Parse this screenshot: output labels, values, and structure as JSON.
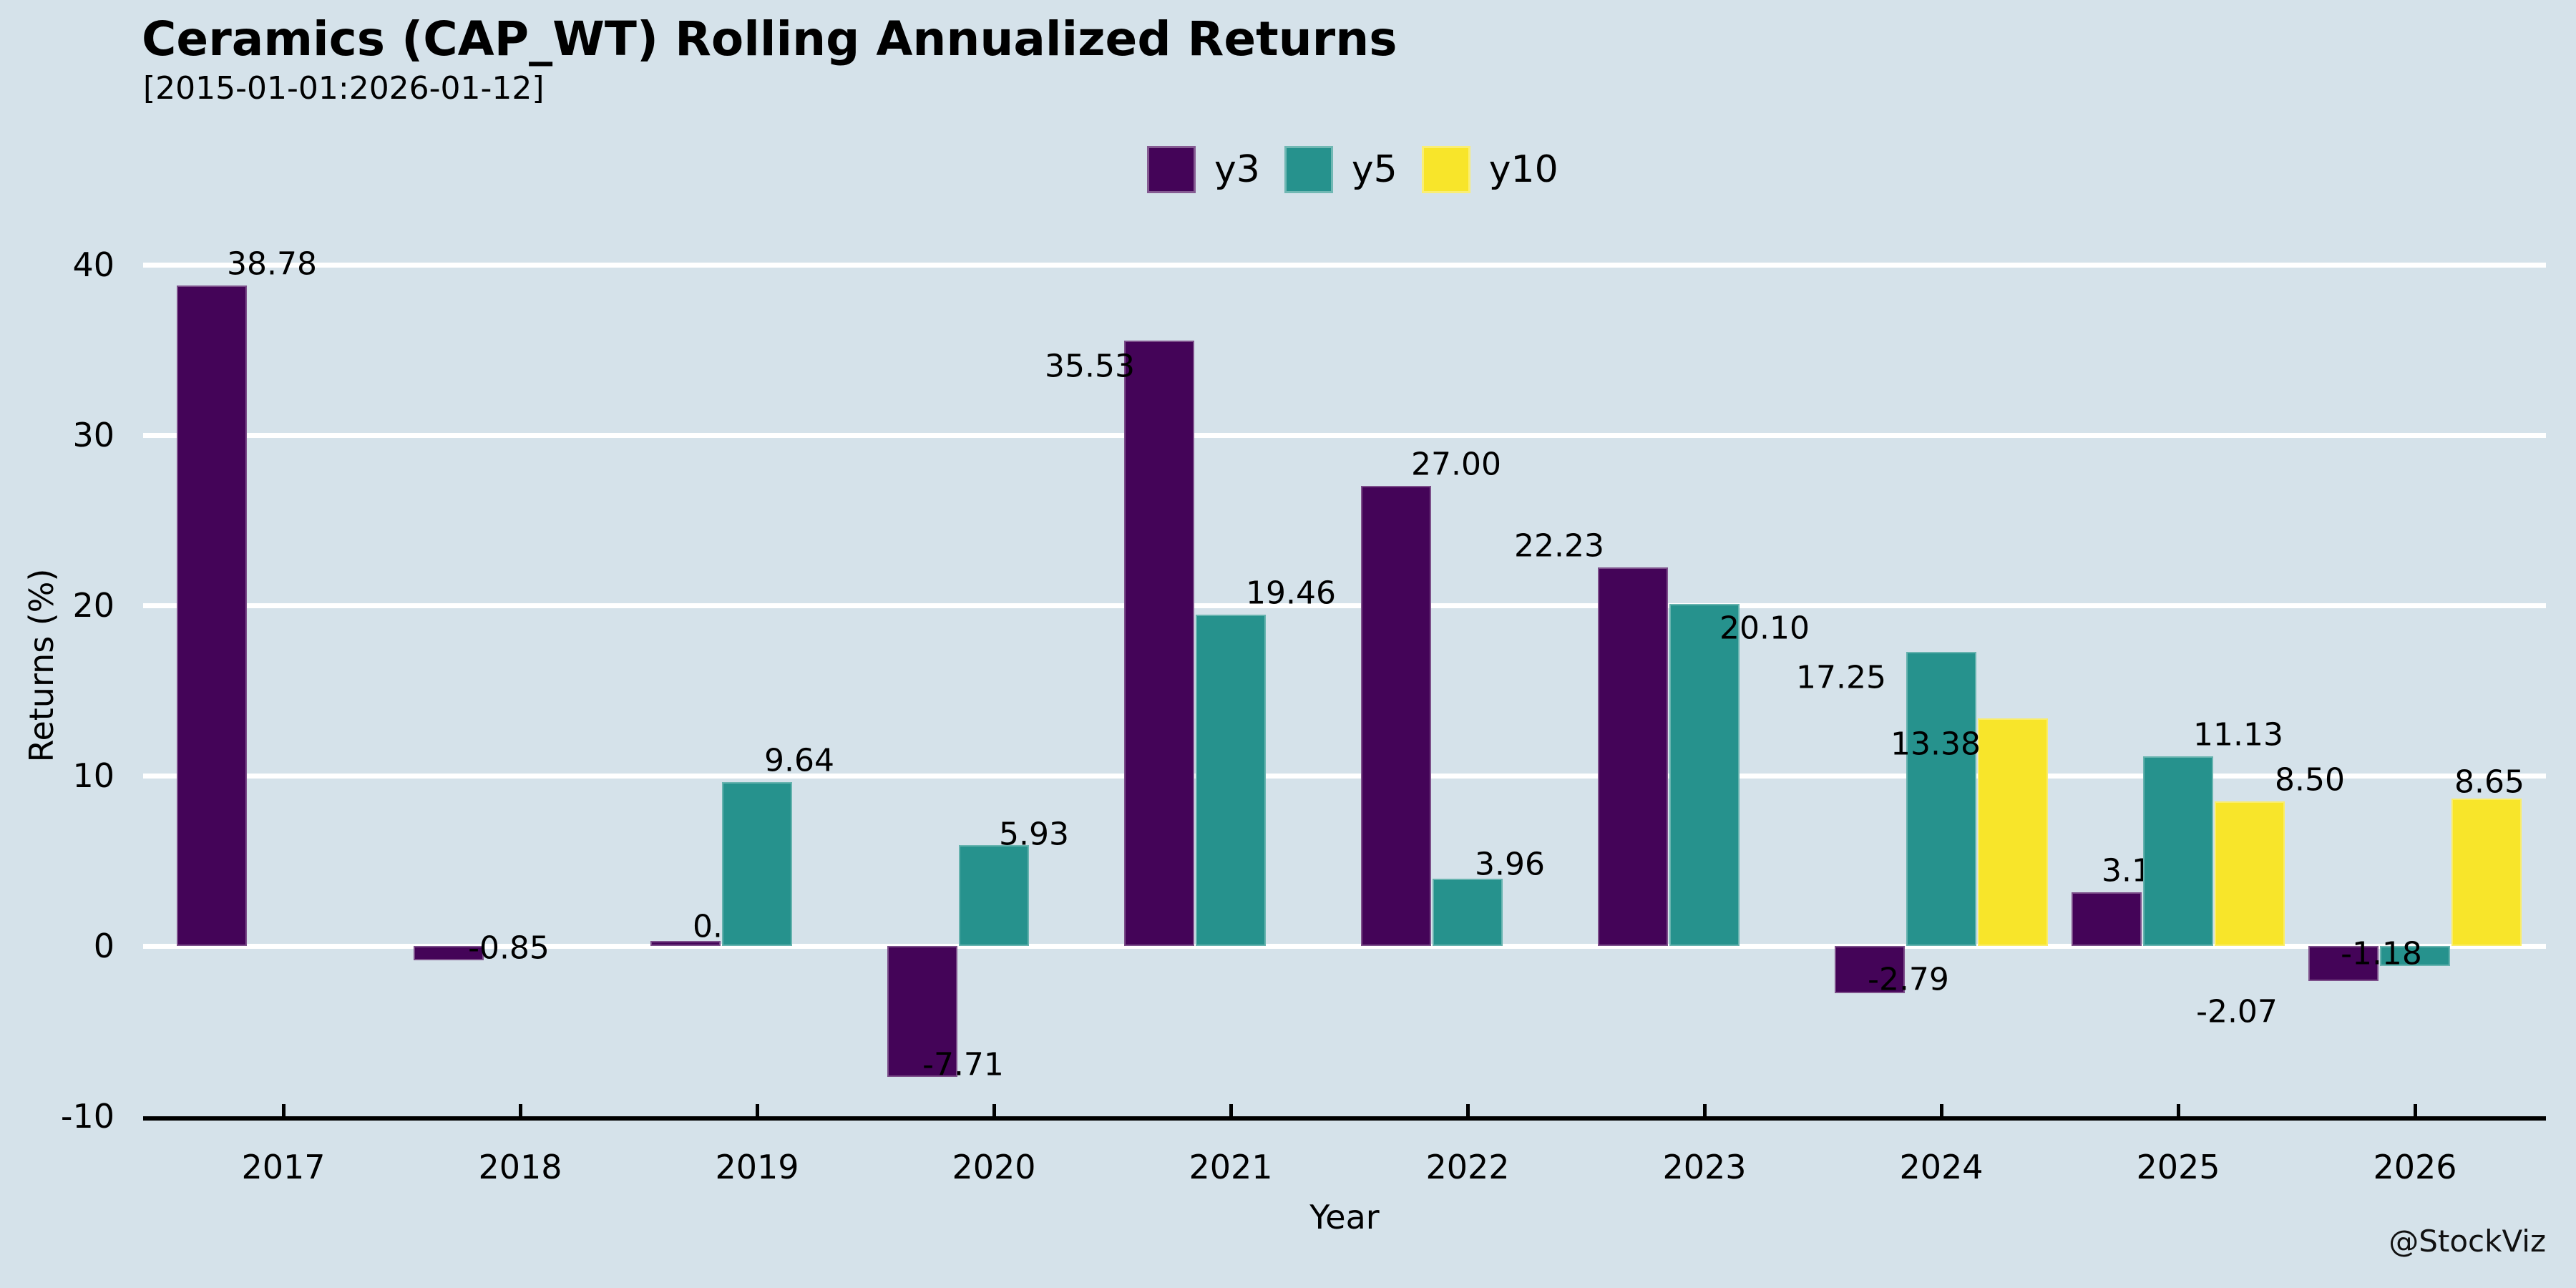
{
  "header": {
    "title": "Ceramics (CAP_WT) Rolling Annualized Returns",
    "subtitle": "[2015-01-01:2026-01-12]"
  },
  "colors": {
    "background": "#D5E2EA",
    "gridline": "#FFFFFF",
    "axis": "#000000",
    "text": "#000000",
    "y3": "#440458",
    "y5": "#26928D",
    "y10": "#F8E52A"
  },
  "chart_data": {
    "type": "bar",
    "title": "Ceramics (CAP_WT) Rolling Annualized Returns",
    "subtitle": "[2015-01-01:2026-01-12]",
    "xlabel": "Year",
    "ylabel": "Returns (%)",
    "watermark": "@StockViz",
    "legend_position": "top center",
    "grid": "horizontal white gridlines",
    "categories": [
      "2017",
      "2018",
      "2019",
      "2020",
      "2021",
      "2022",
      "2023",
      "2024",
      "2025",
      "2026"
    ],
    "yticks": [
      -10,
      0,
      10,
      20,
      30,
      40
    ],
    "ylim": [
      -10,
      42.5
    ],
    "series": [
      {
        "name": "y3",
        "color": "#440458",
        "values": [
          38.78,
          -0.85,
          0.28,
          -7.71,
          35.53,
          27.0,
          22.23,
          -2.79,
          3.14,
          -2.07
        ],
        "labels": [
          "38.78",
          "-0.85",
          "0.28",
          "-7.71",
          "35.53",
          "27.00",
          "22.23",
          "-2.79",
          "3.14",
          "-2.07"
        ]
      },
      {
        "name": "y5",
        "color": "#26928D",
        "values": [
          null,
          null,
          9.64,
          5.93,
          19.46,
          3.96,
          20.1,
          17.25,
          11.13,
          -1.18
        ],
        "labels": [
          null,
          null,
          "9.64",
          "5.93",
          "19.46",
          "3.96",
          "20.10",
          "17.25",
          "11.13",
          "-1.18"
        ]
      },
      {
        "name": "y10",
        "color": "#F8E52A",
        "values": [
          null,
          null,
          null,
          null,
          null,
          null,
          null,
          13.38,
          8.5,
          8.65
        ],
        "labels": [
          null,
          null,
          null,
          null,
          null,
          null,
          null,
          "13.38",
          "8.50",
          "8.65"
        ]
      }
    ]
  }
}
